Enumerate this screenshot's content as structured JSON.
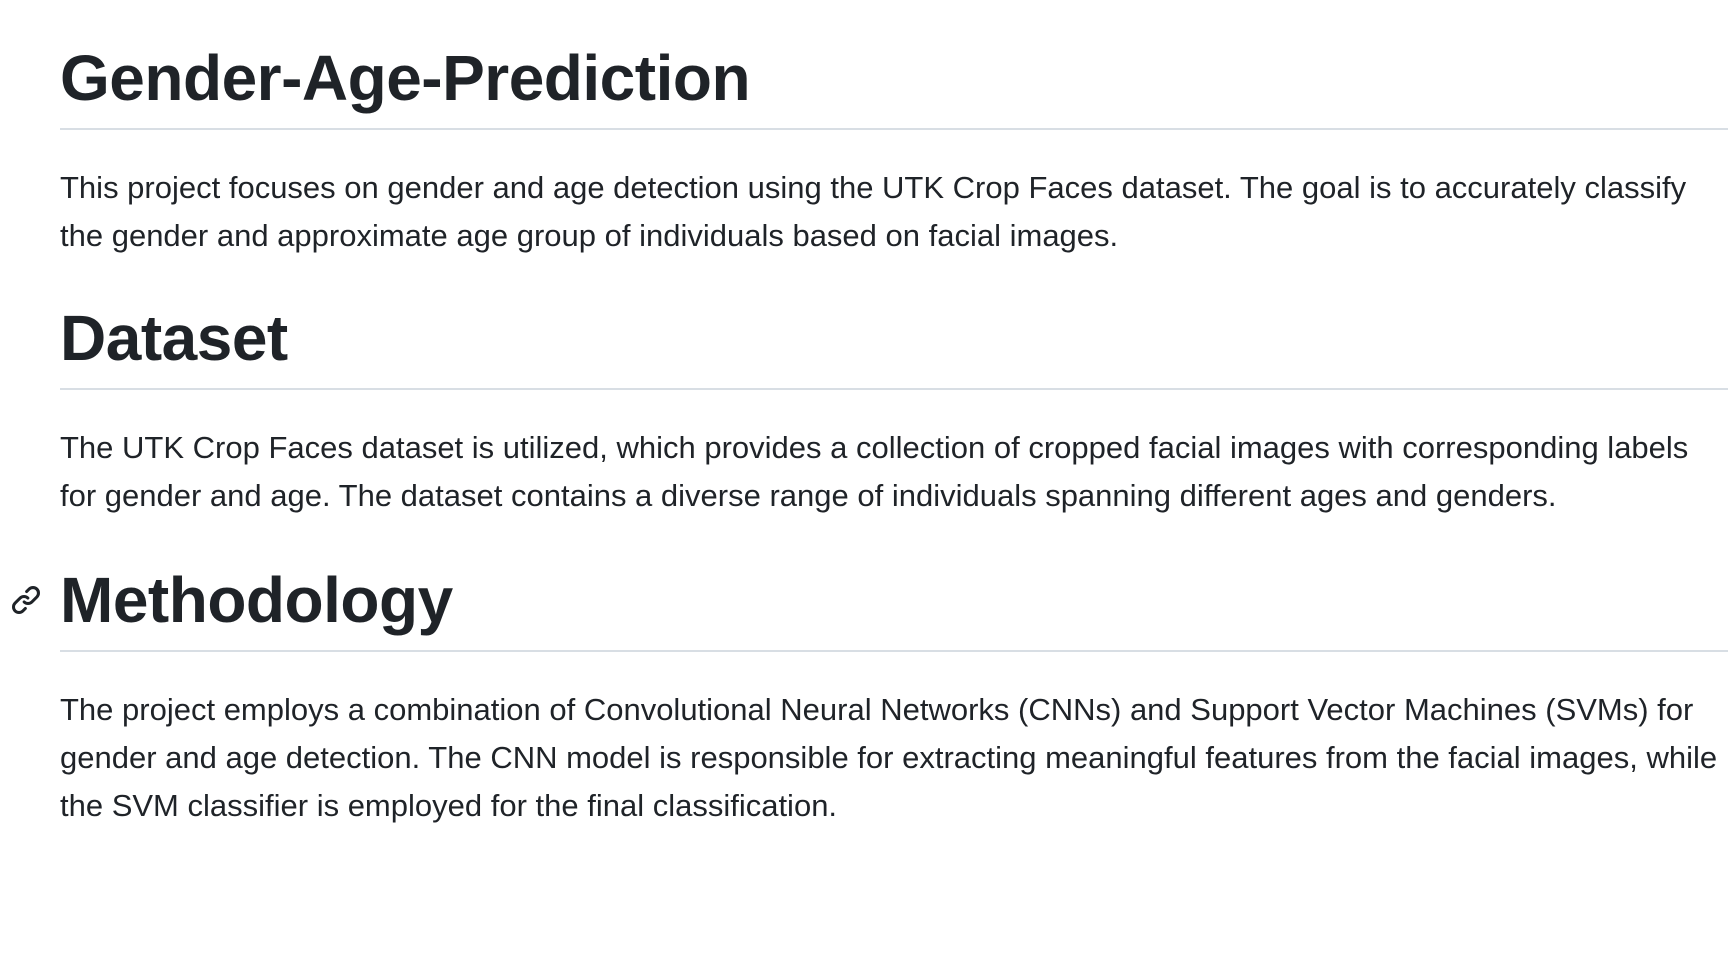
{
  "sections": [
    {
      "heading": "Gender-Age-Prediction",
      "paragraph": "This project focuses on gender and age detection using the UTK Crop Faces dataset. The goal is to accurately classify the gender and approximate age group of individuals based on facial images."
    },
    {
      "heading": "Dataset",
      "paragraph": "The UTK Crop Faces dataset is utilized, which provides a collection of cropped facial images with corresponding labels for gender and age. The dataset contains a diverse range of individuals spanning different ages and genders."
    },
    {
      "heading": "Methodology",
      "paragraph": "The project employs a combination of Convolutional Neural Networks (CNNs) and Support Vector Machines (SVMs) for gender and age detection. The CNN model is responsible for extracting meaningful features from the facial images, while the SVM classifier is employed for the final classification."
    }
  ],
  "icons": {
    "heading_anchor": "link-icon"
  },
  "colors": {
    "text": "#1f2328",
    "divider": "#d8dee4",
    "background": "#ffffff"
  }
}
